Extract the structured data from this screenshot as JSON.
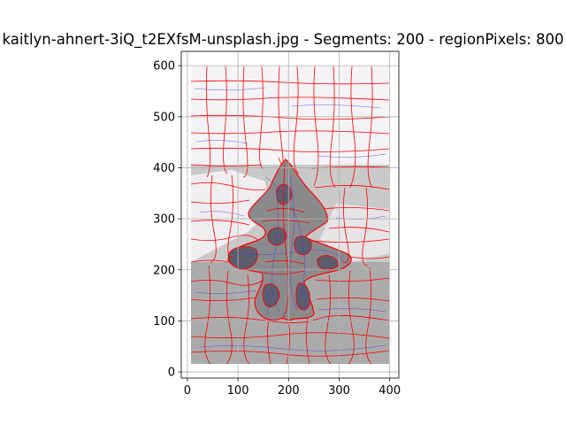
{
  "chart_data": {
    "type": "image",
    "title": "kaitlyn-ahnert-3iQ_t2EXfsM-unsplash.jpg - Segments: 200 - regionPixels: 800",
    "x_ticks": [
      "0",
      "100",
      "200",
      "300",
      "400"
    ],
    "y_ticks": [
      "0",
      "100",
      "200",
      "300",
      "400",
      "500",
      "600"
    ],
    "x_tick_values": [
      0,
      100,
      200,
      300,
      400
    ],
    "y_tick_values": [
      0,
      100,
      200,
      300,
      400,
      500,
      600
    ],
    "xlim": [
      -12,
      418
    ],
    "ylim": [
      628,
      -12
    ],
    "image_extent": {
      "x": [
        0,
        400
      ],
      "y": [
        0,
        600
      ]
    },
    "segments": 200,
    "grid": true,
    "colors": {
      "boundary": "#ff0000",
      "flow_lines": "#3b3bd9",
      "background_light": "#f5f3f5",
      "background_mid": "#c9c9c9",
      "background_floor": "#a9a9a9",
      "figure_dark": "#8a8a8c",
      "grid": "#b0b0b0"
    }
  }
}
